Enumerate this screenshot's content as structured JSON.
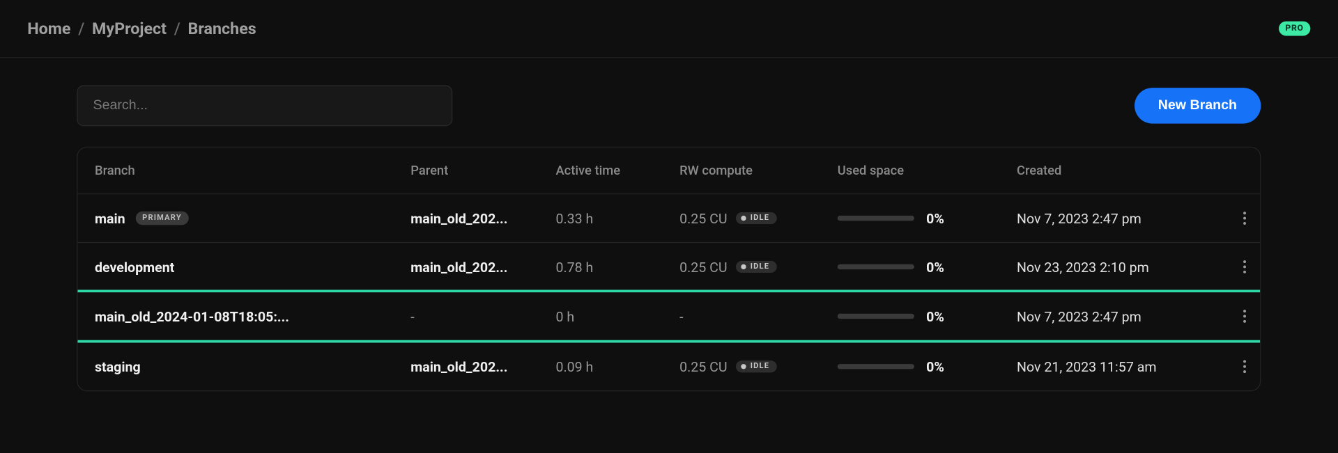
{
  "breadcrumb": {
    "home": "Home",
    "project": "MyProject",
    "page": "Branches"
  },
  "badge": {
    "pro": "PRO"
  },
  "toolbar": {
    "search_placeholder": "Search...",
    "new_branch_label": "New Branch"
  },
  "table": {
    "headers": {
      "branch": "Branch",
      "parent": "Parent",
      "active_time": "Active time",
      "rw_compute": "RW compute",
      "used_space": "Used space",
      "created": "Created"
    },
    "primary_tag": "PRIMARY",
    "idle_label": "IDLE",
    "rows": [
      {
        "branch": "main",
        "primary": true,
        "parent": "main_old_202...",
        "active_time": "0.33 h",
        "rw_compute": "0.25 CU",
        "idle": true,
        "used_pct": "0%",
        "created": "Nov 7, 2023 2:47 pm",
        "highlighted": false
      },
      {
        "branch": "development",
        "primary": false,
        "parent": "main_old_202...",
        "active_time": "0.78 h",
        "rw_compute": "0.25 CU",
        "idle": true,
        "used_pct": "0%",
        "created": "Nov 23, 2023 2:10 pm",
        "highlighted": false
      },
      {
        "branch": "main_old_2024-01-08T18:05:...",
        "primary": false,
        "parent": "-",
        "active_time": "0 h",
        "rw_compute": "-",
        "idle": false,
        "used_pct": "0%",
        "created": "Nov 7, 2023 2:47 pm",
        "highlighted": true
      },
      {
        "branch": "staging",
        "primary": false,
        "parent": "main_old_202...",
        "active_time": "0.09 h",
        "rw_compute": "0.25 CU",
        "idle": true,
        "used_pct": "0%",
        "created": "Nov 21, 2023 11:57 am",
        "highlighted": false
      }
    ]
  },
  "colors": {
    "background": "#0f0f0f",
    "accent_green": "#3ce9a5",
    "highlight_border": "#2fd9a7",
    "primary_button": "#1672f7",
    "border": "#242424",
    "text_muted": "#8a8a8a"
  }
}
